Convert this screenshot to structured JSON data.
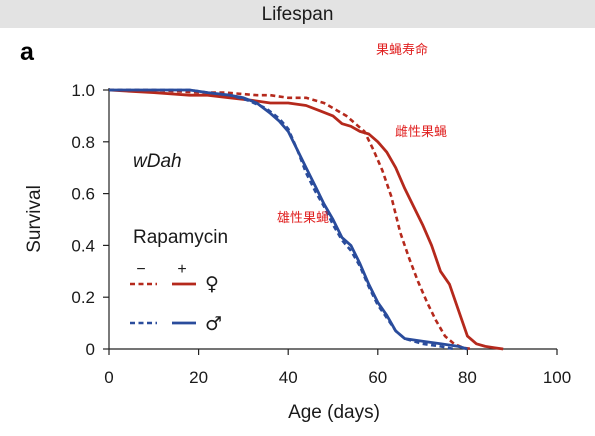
{
  "header": {
    "title": "Lifespan"
  },
  "panel": {
    "letter": "a"
  },
  "annotations": {
    "top": "果蝇寿命",
    "female": "雌性果蝇",
    "male": "雄性果蝇"
  },
  "colors": {
    "female": "#b5291c",
    "male": "#2a4c9c",
    "axis": "#222222"
  },
  "chart_data": {
    "type": "line",
    "xlabel": "Age (days)",
    "ylabel": "Survival",
    "xlim": [
      0,
      100
    ],
    "ylim": [
      0,
      1.0
    ],
    "xticks": [
      0,
      20,
      40,
      60,
      80,
      100
    ],
    "yticks": [
      0,
      0.2,
      0.4,
      0.6,
      0.8,
      1.0
    ],
    "ytick_labels": [
      "0",
      "0.2",
      "0.4",
      "0.6",
      "0.8",
      "1.0"
    ],
    "strain_label": "wDah",
    "legend": {
      "title": "Rapamycin",
      "minus": "−",
      "plus": "+",
      "female_symbol": "♀",
      "male_symbol": "♂"
    },
    "series": [
      {
        "sex": "female",
        "rapamycin": "+",
        "style": "solid",
        "color": "#b5291c",
        "x": [
          0,
          10,
          18,
          22,
          27,
          32,
          36,
          40,
          44,
          47,
          50,
          52,
          54,
          56,
          58,
          60,
          62,
          64,
          66,
          68,
          70,
          72,
          74,
          76,
          78,
          80,
          82,
          84,
          86,
          88
        ],
        "y": [
          1.0,
          0.99,
          0.98,
          0.98,
          0.97,
          0.96,
          0.95,
          0.95,
          0.94,
          0.92,
          0.9,
          0.87,
          0.86,
          0.84,
          0.83,
          0.8,
          0.76,
          0.7,
          0.62,
          0.55,
          0.48,
          0.4,
          0.3,
          0.25,
          0.15,
          0.05,
          0.02,
          0.01,
          0.005,
          0.0
        ]
      },
      {
        "sex": "female",
        "rapamycin": "−",
        "style": "dashed",
        "color": "#b5291c",
        "x": [
          0,
          10,
          20,
          26,
          33,
          36,
          40,
          44,
          48,
          51,
          53,
          55,
          57,
          59,
          61,
          63,
          65,
          67,
          69,
          71,
          73,
          75,
          77,
          79,
          81
        ],
        "y": [
          1.0,
          1.0,
          0.99,
          0.99,
          0.98,
          0.98,
          0.97,
          0.97,
          0.95,
          0.92,
          0.9,
          0.87,
          0.84,
          0.77,
          0.69,
          0.59,
          0.45,
          0.35,
          0.26,
          0.18,
          0.11,
          0.05,
          0.02,
          0.005,
          0.0
        ]
      },
      {
        "sex": "male",
        "rapamycin": "+",
        "style": "solid",
        "color": "#2a4c9c",
        "x": [
          0,
          10,
          18,
          22,
          27,
          30,
          33,
          36,
          38,
          40,
          42,
          44,
          46,
          48,
          50,
          52,
          54,
          56,
          58,
          60,
          62,
          64,
          66,
          70,
          74,
          78,
          80
        ],
        "y": [
          1.0,
          1.0,
          1.0,
          0.99,
          0.98,
          0.97,
          0.95,
          0.91,
          0.88,
          0.84,
          0.77,
          0.7,
          0.63,
          0.56,
          0.5,
          0.43,
          0.4,
          0.33,
          0.25,
          0.18,
          0.13,
          0.07,
          0.04,
          0.03,
          0.02,
          0.01,
          0.0
        ]
      },
      {
        "sex": "male",
        "rapamycin": "−",
        "style": "dashed",
        "color": "#2a4c9c",
        "x": [
          0,
          10,
          18,
          22,
          27,
          31,
          35,
          38,
          40,
          42,
          44,
          46,
          48,
          50,
          52,
          54,
          56,
          58,
          60,
          62,
          64,
          66,
          68,
          70,
          74,
          77
        ],
        "y": [
          1.0,
          1.0,
          1.0,
          0.99,
          0.98,
          0.96,
          0.93,
          0.89,
          0.85,
          0.77,
          0.68,
          0.61,
          0.55,
          0.48,
          0.42,
          0.38,
          0.32,
          0.24,
          0.17,
          0.12,
          0.07,
          0.04,
          0.03,
          0.02,
          0.01,
          0.0
        ]
      }
    ]
  }
}
